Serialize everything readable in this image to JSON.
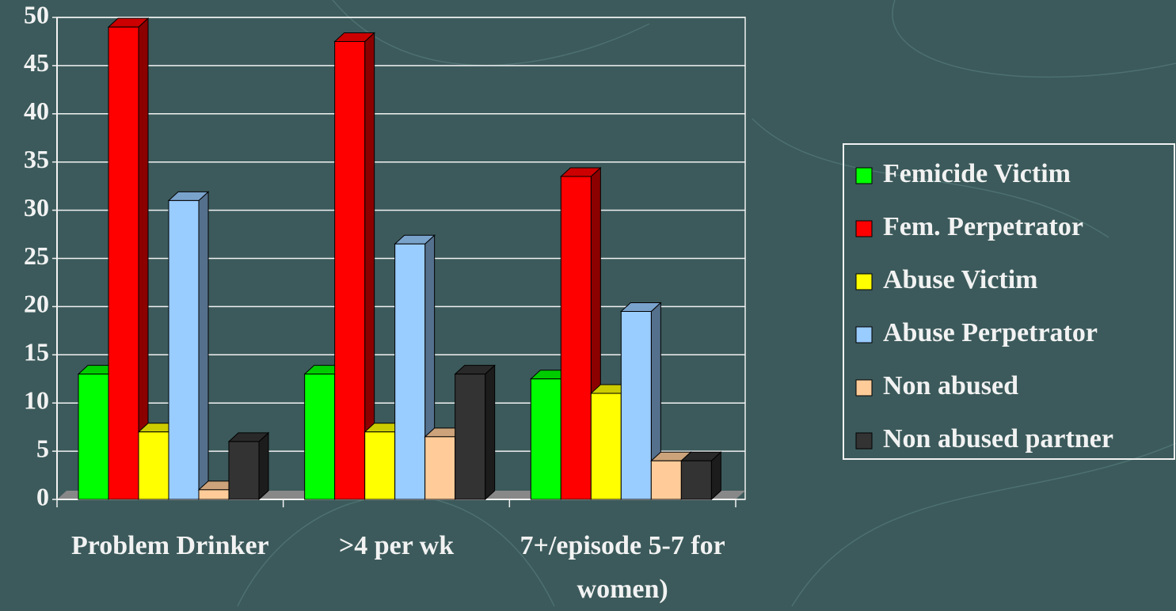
{
  "chart_data": {
    "type": "bar3d",
    "categories": [
      "Problem Drinker",
      ">4 per wk",
      "7+/episode 5-7 for women)"
    ],
    "series": [
      {
        "name": "Femicide Victim",
        "color": "#00ff00",
        "values": [
          13,
          13,
          12.5
        ]
      },
      {
        "name": "Fem. Perpetrator",
        "color": "#ff0000",
        "values": [
          49,
          47.5,
          33.5
        ]
      },
      {
        "name": "Abuse Victim",
        "color": "#ffff00",
        "values": [
          7,
          7,
          11
        ]
      },
      {
        "name": "Abuse Perpetrator",
        "color": "#99ccff",
        "values": [
          31,
          26.5,
          19.5
        ]
      },
      {
        "name": "Non abused",
        "color": "#ffcc99",
        "values": [
          1,
          6.5,
          4
        ]
      },
      {
        "name": "Non abused partner",
        "color": "#333333",
        "values": [
          6,
          13,
          4
        ]
      }
    ],
    "ylim": [
      0,
      50
    ],
    "yticks": [
      0,
      5,
      10,
      15,
      20,
      25,
      30,
      35,
      40,
      45,
      50
    ],
    "grid": true,
    "legend": "right"
  }
}
